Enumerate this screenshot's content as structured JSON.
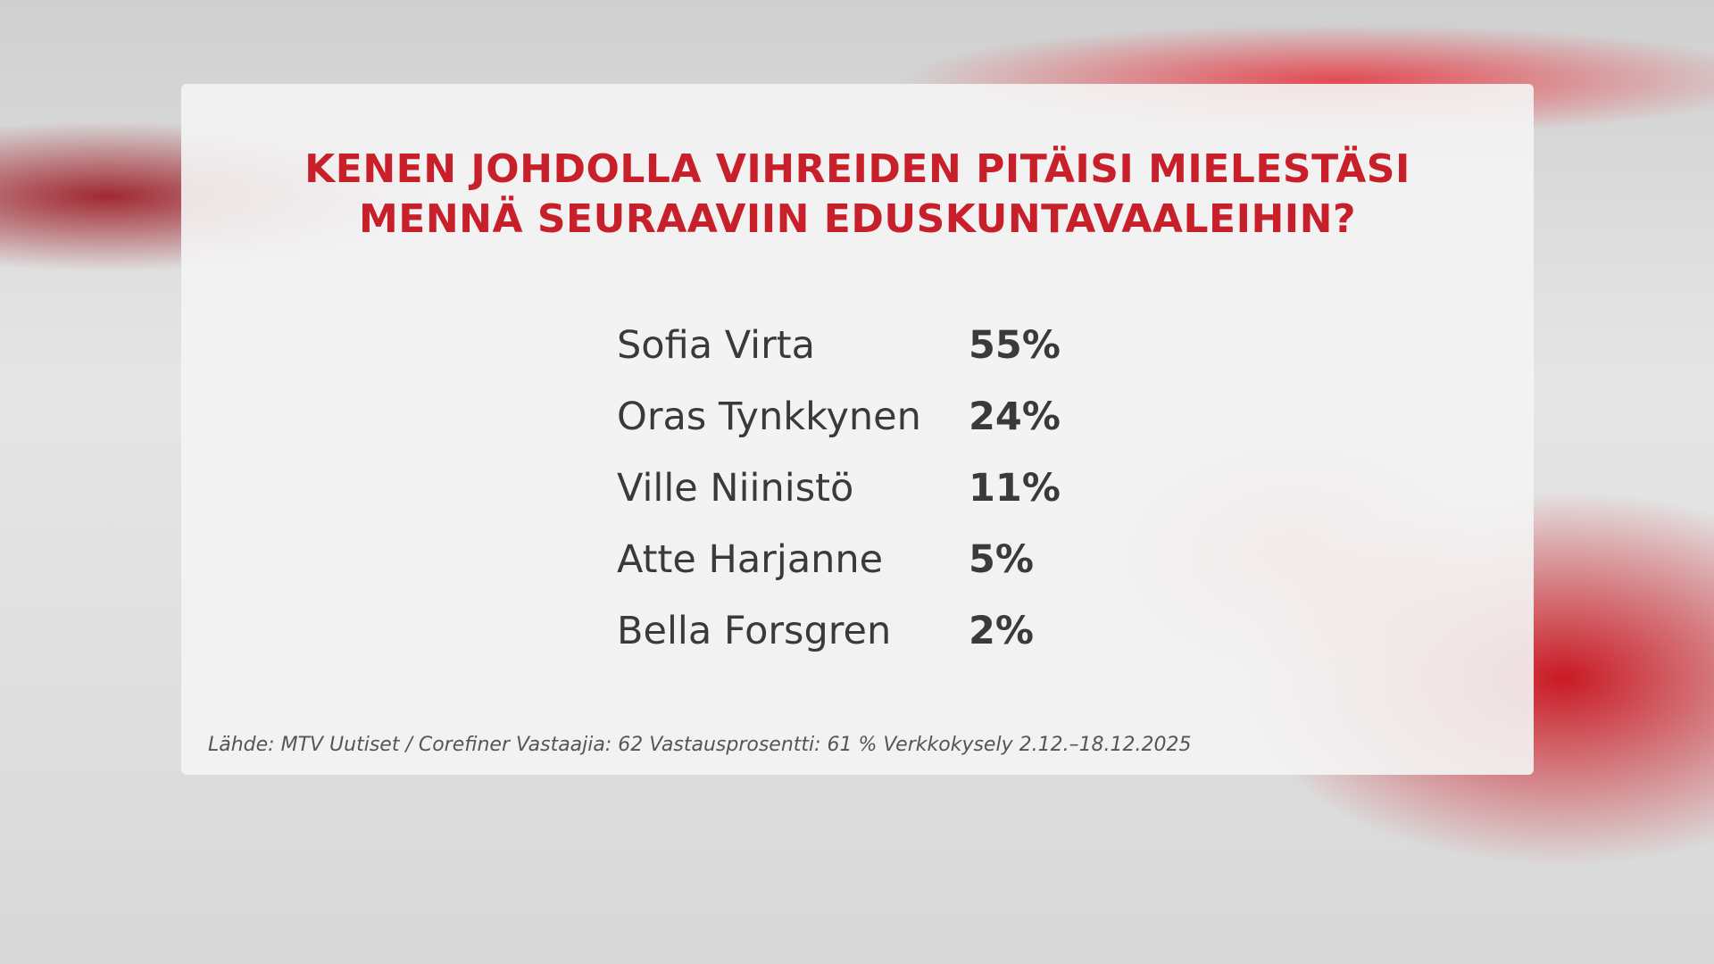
{
  "header": {
    "title": [
      "KENEN JOHDOLLA VIHREIDEN PITÄISI MIELESTÄSI",
      "MENNÄ SEURAAVIIN EDUSKUNTAVAALEIHIN?"
    ]
  },
  "table": {
    "rows": [
      [
        "Sofia Virta",
        "55%"
      ],
      [
        "Oras Tynkkynen",
        "24%"
      ],
      [
        "Ville Niinistö",
        "11%"
      ],
      [
        "Atte Harjanne",
        "5%"
      ],
      [
        "Bella Forsgren",
        "2%"
      ]
    ]
  },
  "footer": {
    "source": "Lähde: MTV Uutiset / Corefiner Vastaajia: 62 Vastausprosentti: 61 % Verkkokysely 2.12.–18.12.2025"
  }
}
